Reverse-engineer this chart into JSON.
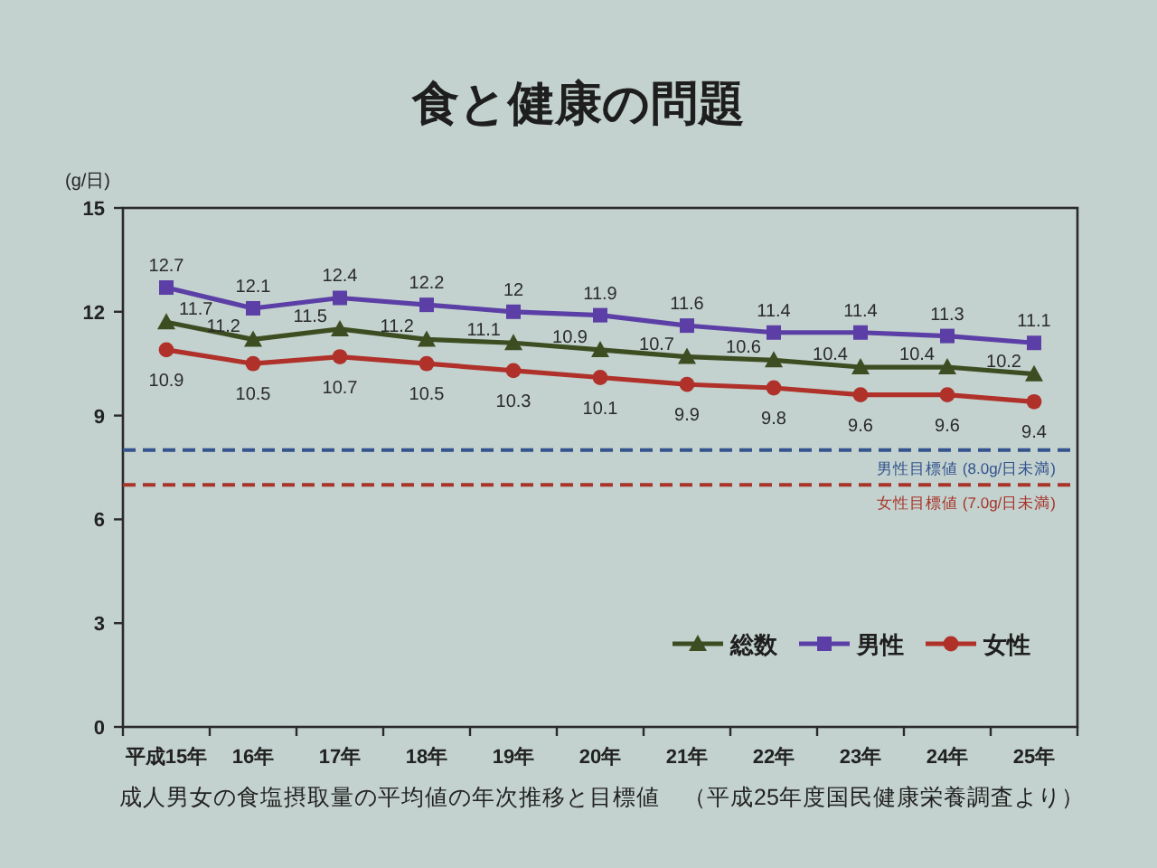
{
  "chart_data": {
    "type": "line",
    "title": "食と健康の問題",
    "ylabel": "(g/日)",
    "categories": [
      "平成15年",
      "16年",
      "17年",
      "18年",
      "19年",
      "20年",
      "21年",
      "22年",
      "23年",
      "24年",
      "25年"
    ],
    "series": [
      {
        "name": "総数",
        "color": "#3d4d22",
        "marker": "triangle",
        "values": [
          11.7,
          11.2,
          11.5,
          11.2,
          11.1,
          10.9,
          10.7,
          10.6,
          10.4,
          10.4,
          10.2
        ]
      },
      {
        "name": "男性",
        "color": "#5b3fa6",
        "marker": "square",
        "values": [
          12.7,
          12.1,
          12.4,
          12.2,
          12,
          11.9,
          11.6,
          11.4,
          11.4,
          11.3,
          11.1
        ]
      },
      {
        "name": "女性",
        "color": "#b0302a",
        "marker": "circle",
        "values": [
          10.9,
          10.5,
          10.7,
          10.5,
          10.3,
          10.1,
          9.9,
          9.8,
          9.6,
          9.6,
          9.4
        ]
      }
    ],
    "ylim": [
      0,
      15
    ],
    "yticks": [
      0,
      3,
      6,
      9,
      12,
      15
    ],
    "grid": false,
    "legend": "bottom right",
    "data_labels": true,
    "line_style": "solid",
    "ref_lines": [
      {
        "axis": "y",
        "value": 8,
        "label": "男性目標値 (8.0g/日未満)",
        "color": "#34538f",
        "line_style": "dashed"
      },
      {
        "axis": "y",
        "value": 7,
        "label": "女性目標値 (7.0g/日未満)",
        "color": "#a8342a",
        "line_style": "dashed"
      }
    ],
    "annotations": [
      "成人男女の食塩摂取量の平均値の年次推移と目標値　（平成25年度国民健康栄養調査より）"
    ]
  }
}
